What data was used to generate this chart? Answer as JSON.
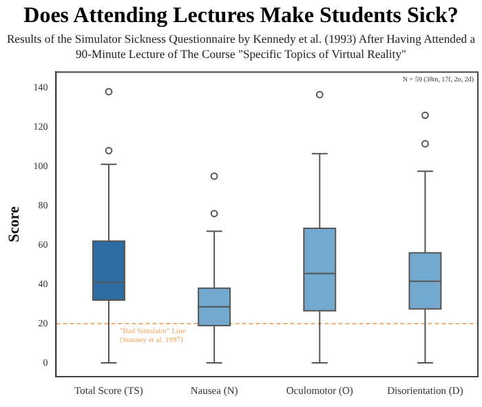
{
  "chart_data": {
    "type": "box",
    "title": "Does Attending Lectures Make Students Sick?",
    "subtitle": "Results of the Simulator Sickness Questionnaire by Kennedy et al. (1993) After Having Attended a 90-Minute Lecture of The Course \"Specific Topics of Virtual Reality\"",
    "ylabel": "Score",
    "categories": [
      "Total Score (TS)",
      "Nausea (N)",
      "Oculomotor (O)",
      "Disorientation (D)"
    ],
    "colors": [
      "#2e6ca4",
      "#74a9cf",
      "#74a9cf",
      "#74a9cf"
    ],
    "boxes": [
      {
        "low": 0,
        "q1": 32,
        "median": 41,
        "q3": 62,
        "high": 101,
        "outliers": [
          108,
          138
        ]
      },
      {
        "low": 0,
        "q1": 19,
        "median": 28.5,
        "q3": 38,
        "high": 67,
        "outliers": [
          76,
          95
        ]
      },
      {
        "low": 0,
        "q1": 26.5,
        "median": 45.5,
        "q3": 68.5,
        "high": 106.5,
        "outliers": [
          136.5
        ]
      },
      {
        "low": 0,
        "q1": 27.5,
        "median": 41.5,
        "q3": 56,
        "high": 97.5,
        "outliers": [
          111.5,
          126
        ]
      }
    ],
    "ylim": [
      -7,
      148
    ],
    "yticks": [
      0,
      20,
      40,
      60,
      80,
      100,
      120,
      140
    ],
    "grid": false,
    "legend": false,
    "ref_lines": [
      {
        "axis": "y",
        "value": 20,
        "label": "\"Bad Simulator\" Line (Stanney et al. 1997)",
        "color": "#f4a460",
        "line_style": "dashed"
      }
    ],
    "annotations": [
      "N = 59 (38m, 17f, 2o, 2d)"
    ]
  }
}
